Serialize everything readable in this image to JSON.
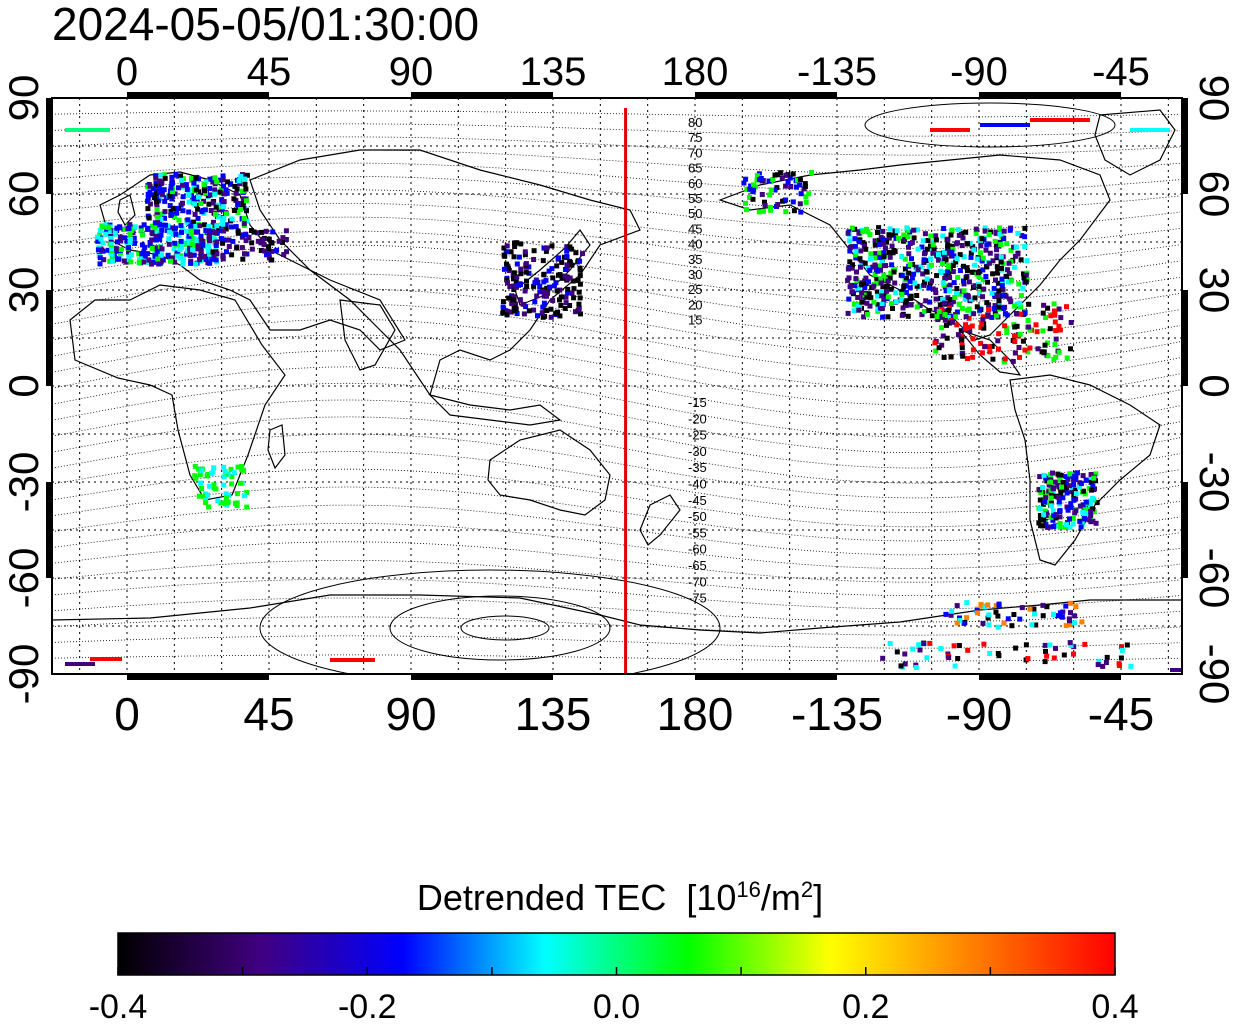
{
  "timestamp": "2024-05-05/01:30:00",
  "map": {
    "lon_top_labels": [
      "0",
      "45",
      "90",
      "135",
      "180",
      "-135",
      "-90",
      "-45"
    ],
    "lon_bottom_labels": [
      "0",
      "45",
      "90",
      "135",
      "180",
      "-135",
      "-90",
      "-45"
    ],
    "lat_left_labels": [
      "90",
      "60",
      "30",
      "0",
      "-30",
      "-60",
      "-90"
    ],
    "lat_right_labels": [
      "90",
      "60",
      "30",
      "0",
      "-30",
      "-60",
      "-90"
    ],
    "red_line_longitude": 158,
    "red_line_color": "#e00000",
    "contour_labels_north": [
      "80",
      "75",
      "70",
      "65",
      "60",
      "55",
      "50",
      "45",
      "40",
      "35",
      "30",
      "25",
      "20",
      "15"
    ],
    "contour_labels_south": [
      "-15",
      "-20",
      "-25",
      "-30",
      "-35",
      "-40",
      "-45",
      "-50",
      "-55",
      "-60",
      "-65",
      "-70",
      "-75"
    ],
    "grid": true,
    "grid_style": "dotted"
  },
  "colorbar": {
    "title_text": "Detrended TEC",
    "unit_prefix": "[10",
    "unit_exp1": "16",
    "unit_mid": "/m",
    "unit_exp2": "2",
    "unit_suffix": "]",
    "min": -0.4,
    "max": 0.4,
    "tick_labels": [
      "-0.4",
      "-0.2",
      "0.0",
      "0.2",
      "0.4"
    ],
    "colors": [
      "#000000",
      "#40007f",
      "#0000ff",
      "#00ffff",
      "#00ff00",
      "#ffff00",
      "#ff7f00",
      "#ff0000"
    ]
  }
}
